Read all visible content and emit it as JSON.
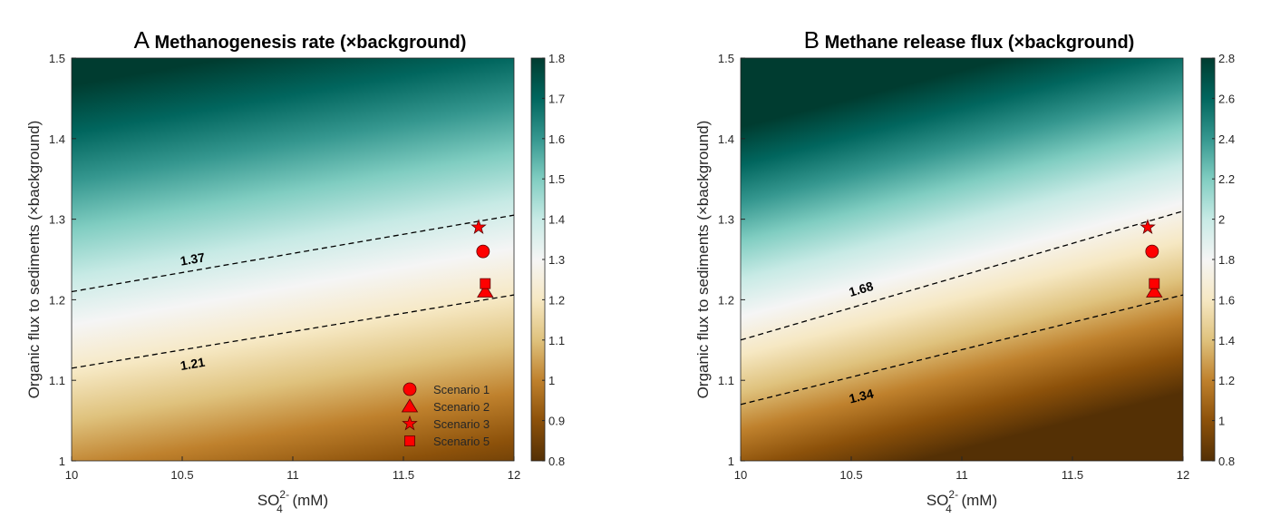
{
  "chart_data": [
    {
      "type": "heatmap",
      "panel_letter": "A",
      "title": "Methanogenesis rate (×background)",
      "xlabel": "SO4 2- (mM)",
      "xlabel_parts": {
        "base": "SO",
        "sub": "4",
        "sup": "2-",
        "rest": " (mM)"
      },
      "ylabel": "Organic flux to sediments (×background)",
      "xlim": [
        10,
        12
      ],
      "ylim": [
        1,
        1.5
      ],
      "xticks": [
        "10",
        "10.5",
        "11",
        "11.5",
        "12"
      ],
      "yticks": [
        "1",
        "1.1",
        "1.2",
        "1.3",
        "1.4",
        "1.5"
      ],
      "colorbar": {
        "range": [
          0.8,
          1.8
        ],
        "ticks": [
          "0.8",
          "0.9",
          "1",
          "1.1",
          "1.2",
          "1.3",
          "1.4",
          "1.5",
          "1.6",
          "1.7",
          "1.8"
        ]
      },
      "contours": [
        {
          "level": "1.37",
          "points": [
            [
              10,
              1.21
            ],
            [
              12,
              1.305
            ]
          ],
          "label_at": [
            10.55,
            1.245
          ]
        },
        {
          "level": "1.21",
          "points": [
            [
              10,
              1.115
            ],
            [
              12,
              1.206
            ]
          ],
          "label_at": [
            10.55,
            1.115
          ]
        }
      ],
      "markers": [
        {
          "name": "Scenario 1",
          "shape": "circle",
          "x": 11.86,
          "y": 1.26
        },
        {
          "name": "Scenario 2",
          "shape": "triangle",
          "x": 11.87,
          "y": 1.21
        },
        {
          "name": "Scenario 3",
          "shape": "star",
          "x": 11.84,
          "y": 1.29
        },
        {
          "name": "Scenario 5",
          "shape": "square",
          "x": 11.87,
          "y": 1.22
        }
      ],
      "legend": {
        "placement": "bottom-right",
        "entries": [
          "Scenario 1",
          "Scenario 2",
          "Scenario 3",
          "Scenario 5"
        ]
      }
    },
    {
      "type": "heatmap",
      "panel_letter": "B",
      "title": "Methane release flux (×background)",
      "xlabel": "SO4 2- (mM)",
      "xlabel_parts": {
        "base": "SO",
        "sub": "4",
        "sup": "2-",
        "rest": " (mM)"
      },
      "ylabel": "Organic flux to sediments (×background)",
      "xlim": [
        10,
        12
      ],
      "ylim": [
        1,
        1.5
      ],
      "xticks": [
        "10",
        "10.5",
        "11",
        "11.5",
        "12"
      ],
      "yticks": [
        "1",
        "1.1",
        "1.2",
        "1.3",
        "1.4",
        "1.5"
      ],
      "colorbar": {
        "range": [
          0.8,
          2.8
        ],
        "ticks": [
          "0.8",
          "1",
          "1.2",
          "1.4",
          "1.6",
          "1.8",
          "2",
          "2.2",
          "2.4",
          "2.6",
          "2.8"
        ]
      },
      "contours": [
        {
          "level": "1.68",
          "points": [
            [
              10,
              1.15
            ],
            [
              12,
              1.31
            ]
          ],
          "label_at": [
            10.55,
            1.208
          ]
        },
        {
          "level": "1.34",
          "points": [
            [
              10,
              1.07
            ],
            [
              12,
              1.206
            ]
          ],
          "label_at": [
            10.55,
            1.075
          ]
        }
      ],
      "markers": [
        {
          "name": "Scenario 1",
          "shape": "circle",
          "x": 11.86,
          "y": 1.26
        },
        {
          "name": "Scenario 2",
          "shape": "triangle",
          "x": 11.87,
          "y": 1.21
        },
        {
          "name": "Scenario 3",
          "shape": "star",
          "x": 11.84,
          "y": 1.29
        },
        {
          "name": "Scenario 5",
          "shape": "square",
          "x": 11.87,
          "y": 1.22
        }
      ]
    }
  ],
  "colors": {
    "colormap": [
      "#543005",
      "#8c510a",
      "#bf812d",
      "#dfc27d",
      "#f6e8c3",
      "#f5f5f5",
      "#c7eae5",
      "#80cdc1",
      "#35978f",
      "#01665e",
      "#003c30"
    ],
    "marker_fill": "#ff0000",
    "marker_edge": "#5a0000"
  }
}
